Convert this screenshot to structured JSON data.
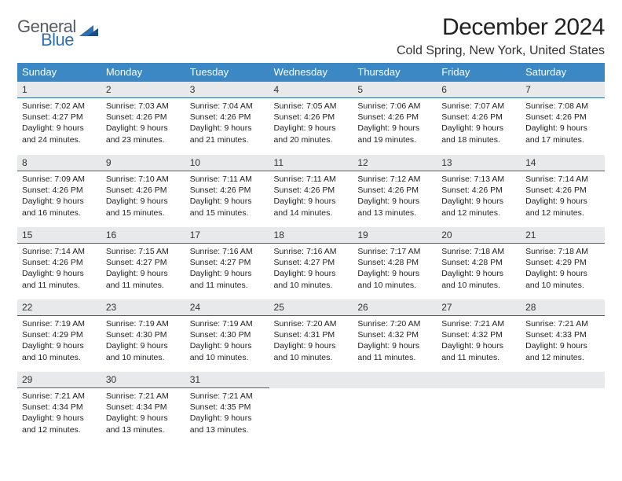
{
  "brand": {
    "word1": "General",
    "word2": "Blue"
  },
  "title": "December 2024",
  "location": "Cold Spring, New York, United States",
  "colors": {
    "header_bg": "#3b88c4",
    "header_text": "#ffffff",
    "daynum_bg": "#e7e9ea",
    "day_divider": "#2b6aa3",
    "brand_gray": "#555b61",
    "brand_blue": "#2f6fb0"
  },
  "weekdays": [
    "Sunday",
    "Monday",
    "Tuesday",
    "Wednesday",
    "Thursday",
    "Friday",
    "Saturday"
  ],
  "days": [
    {
      "n": "1",
      "sunrise": "7:02 AM",
      "sunset": "4:27 PM",
      "dl1": "Daylight: 9 hours",
      "dl2": "and 24 minutes."
    },
    {
      "n": "2",
      "sunrise": "7:03 AM",
      "sunset": "4:26 PM",
      "dl1": "Daylight: 9 hours",
      "dl2": "and 23 minutes."
    },
    {
      "n": "3",
      "sunrise": "7:04 AM",
      "sunset": "4:26 PM",
      "dl1": "Daylight: 9 hours",
      "dl2": "and 21 minutes."
    },
    {
      "n": "4",
      "sunrise": "7:05 AM",
      "sunset": "4:26 PM",
      "dl1": "Daylight: 9 hours",
      "dl2": "and 20 minutes."
    },
    {
      "n": "5",
      "sunrise": "7:06 AM",
      "sunset": "4:26 PM",
      "dl1": "Daylight: 9 hours",
      "dl2": "and 19 minutes."
    },
    {
      "n": "6",
      "sunrise": "7:07 AM",
      "sunset": "4:26 PM",
      "dl1": "Daylight: 9 hours",
      "dl2": "and 18 minutes."
    },
    {
      "n": "7",
      "sunrise": "7:08 AM",
      "sunset": "4:26 PM",
      "dl1": "Daylight: 9 hours",
      "dl2": "and 17 minutes."
    },
    {
      "n": "8",
      "sunrise": "7:09 AM",
      "sunset": "4:26 PM",
      "dl1": "Daylight: 9 hours",
      "dl2": "and 16 minutes."
    },
    {
      "n": "9",
      "sunrise": "7:10 AM",
      "sunset": "4:26 PM",
      "dl1": "Daylight: 9 hours",
      "dl2": "and 15 minutes."
    },
    {
      "n": "10",
      "sunrise": "7:11 AM",
      "sunset": "4:26 PM",
      "dl1": "Daylight: 9 hours",
      "dl2": "and 15 minutes."
    },
    {
      "n": "11",
      "sunrise": "7:11 AM",
      "sunset": "4:26 PM",
      "dl1": "Daylight: 9 hours",
      "dl2": "and 14 minutes."
    },
    {
      "n": "12",
      "sunrise": "7:12 AM",
      "sunset": "4:26 PM",
      "dl1": "Daylight: 9 hours",
      "dl2": "and 13 minutes."
    },
    {
      "n": "13",
      "sunrise": "7:13 AM",
      "sunset": "4:26 PM",
      "dl1": "Daylight: 9 hours",
      "dl2": "and 12 minutes."
    },
    {
      "n": "14",
      "sunrise": "7:14 AM",
      "sunset": "4:26 PM",
      "dl1": "Daylight: 9 hours",
      "dl2": "and 12 minutes."
    },
    {
      "n": "15",
      "sunrise": "7:14 AM",
      "sunset": "4:26 PM",
      "dl1": "Daylight: 9 hours",
      "dl2": "and 11 minutes."
    },
    {
      "n": "16",
      "sunrise": "7:15 AM",
      "sunset": "4:27 PM",
      "dl1": "Daylight: 9 hours",
      "dl2": "and 11 minutes."
    },
    {
      "n": "17",
      "sunrise": "7:16 AM",
      "sunset": "4:27 PM",
      "dl1": "Daylight: 9 hours",
      "dl2": "and 11 minutes."
    },
    {
      "n": "18",
      "sunrise": "7:16 AM",
      "sunset": "4:27 PM",
      "dl1": "Daylight: 9 hours",
      "dl2": "and 10 minutes."
    },
    {
      "n": "19",
      "sunrise": "7:17 AM",
      "sunset": "4:28 PM",
      "dl1": "Daylight: 9 hours",
      "dl2": "and 10 minutes."
    },
    {
      "n": "20",
      "sunrise": "7:18 AM",
      "sunset": "4:28 PM",
      "dl1": "Daylight: 9 hours",
      "dl2": "and 10 minutes."
    },
    {
      "n": "21",
      "sunrise": "7:18 AM",
      "sunset": "4:29 PM",
      "dl1": "Daylight: 9 hours",
      "dl2": "and 10 minutes."
    },
    {
      "n": "22",
      "sunrise": "7:19 AM",
      "sunset": "4:29 PM",
      "dl1": "Daylight: 9 hours",
      "dl2": "and 10 minutes."
    },
    {
      "n": "23",
      "sunrise": "7:19 AM",
      "sunset": "4:30 PM",
      "dl1": "Daylight: 9 hours",
      "dl2": "and 10 minutes."
    },
    {
      "n": "24",
      "sunrise": "7:19 AM",
      "sunset": "4:30 PM",
      "dl1": "Daylight: 9 hours",
      "dl2": "and 10 minutes."
    },
    {
      "n": "25",
      "sunrise": "7:20 AM",
      "sunset": "4:31 PM",
      "dl1": "Daylight: 9 hours",
      "dl2": "and 10 minutes."
    },
    {
      "n": "26",
      "sunrise": "7:20 AM",
      "sunset": "4:32 PM",
      "dl1": "Daylight: 9 hours",
      "dl2": "and 11 minutes."
    },
    {
      "n": "27",
      "sunrise": "7:21 AM",
      "sunset": "4:32 PM",
      "dl1": "Daylight: 9 hours",
      "dl2": "and 11 minutes."
    },
    {
      "n": "28",
      "sunrise": "7:21 AM",
      "sunset": "4:33 PM",
      "dl1": "Daylight: 9 hours",
      "dl2": "and 12 minutes."
    },
    {
      "n": "29",
      "sunrise": "7:21 AM",
      "sunset": "4:34 PM",
      "dl1": "Daylight: 9 hours",
      "dl2": "and 12 minutes."
    },
    {
      "n": "30",
      "sunrise": "7:21 AM",
      "sunset": "4:34 PM",
      "dl1": "Daylight: 9 hours",
      "dl2": "and 13 minutes."
    },
    {
      "n": "31",
      "sunrise": "7:21 AM",
      "sunset": "4:35 PM",
      "dl1": "Daylight: 9 hours",
      "dl2": "and 13 minutes."
    }
  ],
  "labels": {
    "sunrise_prefix": "Sunrise: ",
    "sunset_prefix": "Sunset: "
  },
  "layout": {
    "start_weekday": 0,
    "rows": 5,
    "cols": 7
  }
}
